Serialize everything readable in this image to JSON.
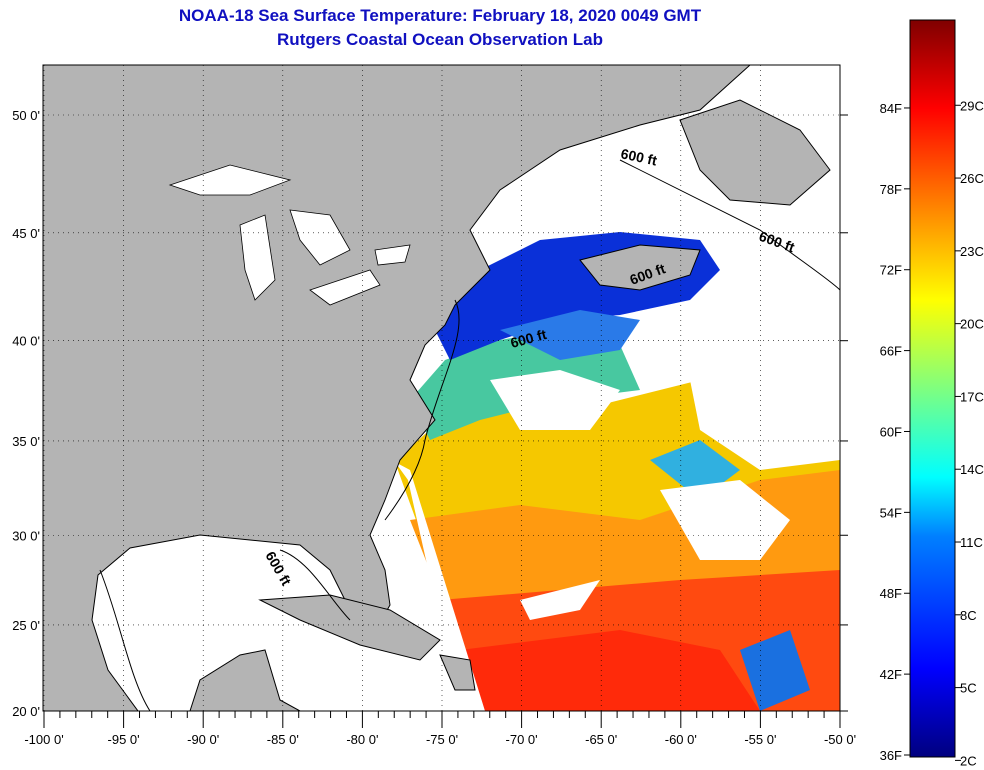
{
  "title": "NOAA-18 Sea Surface Temperature:  February 18, 2020 0049 GMT",
  "subtitle": "Rutgers Coastal Ocean Observation Lab",
  "map": {
    "lon_labels": [
      {
        "lon": -100,
        "text": "-100 0'"
      },
      {
        "lon": -95,
        "text": "-95 0'"
      },
      {
        "lon": -90,
        "text": "-90 0'"
      },
      {
        "lon": -85,
        "text": "-85 0'"
      },
      {
        "lon": -80,
        "text": "-80 0'"
      },
      {
        "lon": -75,
        "text": "-75 0'"
      },
      {
        "lon": -70,
        "text": "-70 0'"
      },
      {
        "lon": -65,
        "text": "-65 0'"
      },
      {
        "lon": -60,
        "text": "-60 0'"
      },
      {
        "lon": -55,
        "text": "-55 0'"
      },
      {
        "lon": -50,
        "text": "-50 0'"
      }
    ],
    "lat_labels": [
      {
        "lat": 50,
        "text": "50 0'"
      },
      {
        "lat": 45,
        "text": "45 0'"
      },
      {
        "lat": 40,
        "text": "40 0'"
      },
      {
        "lat": 35,
        "text": "35 0'"
      },
      {
        "lat": 30,
        "text": "30 0'"
      },
      {
        "lat": 25,
        "text": "25 0'"
      },
      {
        "lat": 20,
        "text": "20 0'"
      }
    ],
    "isobath_label": "600 ft",
    "colors": {
      "land": "#b4b4b4",
      "cloud": "#ffffff"
    }
  },
  "colorbar": {
    "fahrenheit": [
      {
        "v": 84,
        "text": "84F"
      },
      {
        "v": 78,
        "text": "78F"
      },
      {
        "v": 72,
        "text": "72F"
      },
      {
        "v": 66,
        "text": "66F"
      },
      {
        "v": 60,
        "text": "60F"
      },
      {
        "v": 54,
        "text": "54F"
      },
      {
        "v": 48,
        "text": "48F"
      },
      {
        "v": 42,
        "text": "42F"
      },
      {
        "v": 36,
        "text": "36F"
      }
    ],
    "celsius": [
      {
        "v": 29,
        "text": "29C"
      },
      {
        "v": 26,
        "text": "26C"
      },
      {
        "v": 23,
        "text": "23C"
      },
      {
        "v": 20,
        "text": "20C"
      },
      {
        "v": 17,
        "text": "17C"
      },
      {
        "v": 14,
        "text": "14C"
      },
      {
        "v": 11,
        "text": "11C"
      },
      {
        "v": 8,
        "text": "8C"
      },
      {
        "v": 5,
        "text": "5C"
      },
      {
        "v": 2,
        "text": "2C"
      }
    ]
  }
}
